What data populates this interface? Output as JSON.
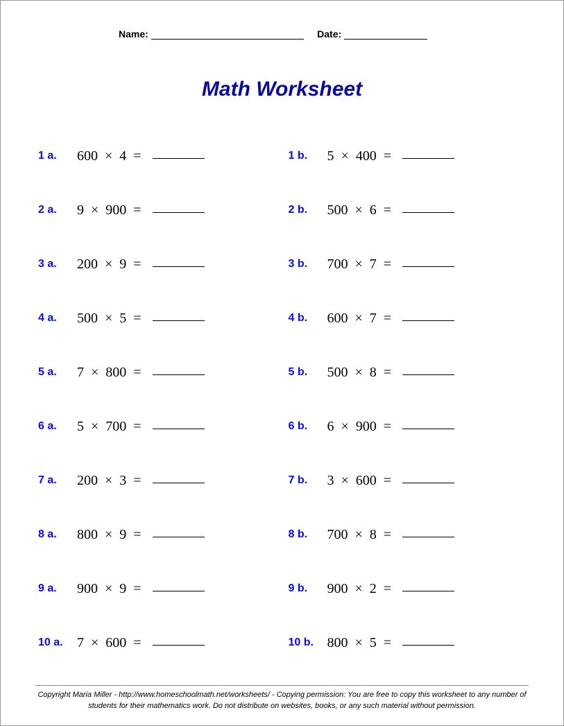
{
  "header": {
    "name_label": "Name:",
    "date_label": "Date:"
  },
  "title": "Math Worksheet",
  "style": {
    "title_color": "#0a0a9a",
    "label_color": "#0a0aee",
    "expr_color": "#000000",
    "page_bg": "#ffffff",
    "title_fontsize": 30,
    "label_fontsize": 16,
    "expr_fontsize": 20,
    "answer_blank_width": 75
  },
  "problems": [
    {
      "label": "1 a.",
      "a": "600",
      "b": "4"
    },
    {
      "label": "1 b.",
      "a": "5",
      "b": "400"
    },
    {
      "label": "2 a.",
      "a": "9",
      "b": "900"
    },
    {
      "label": "2 b.",
      "a": "500",
      "b": "6"
    },
    {
      "label": "3 a.",
      "a": "200",
      "b": "9"
    },
    {
      "label": "3 b.",
      "a": "700",
      "b": "7"
    },
    {
      "label": "4 a.",
      "a": "500",
      "b": "5"
    },
    {
      "label": "4 b.",
      "a": "600",
      "b": "7"
    },
    {
      "label": "5 a.",
      "a": "7",
      "b": "800"
    },
    {
      "label": "5 b.",
      "a": "500",
      "b": "8"
    },
    {
      "label": "6 a.",
      "a": "5",
      "b": "700"
    },
    {
      "label": "6 b.",
      "a": "6",
      "b": "900"
    },
    {
      "label": "7 a.",
      "a": "200",
      "b": "3"
    },
    {
      "label": "7 b.",
      "a": "3",
      "b": "600"
    },
    {
      "label": "8 a.",
      "a": "800",
      "b": "9"
    },
    {
      "label": "8 b.",
      "a": "700",
      "b": "8"
    },
    {
      "label": "9 a.",
      "a": "900",
      "b": "9"
    },
    {
      "label": "9 b.",
      "a": "900",
      "b": "2"
    },
    {
      "label": "10 a.",
      "a": "7",
      "b": "600"
    },
    {
      "label": "10 b.",
      "a": "800",
      "b": "5"
    }
  ],
  "operator": "×",
  "equals": "=",
  "footer": "Copyright Maria Miller - http://www.homeschoolmath.net/worksheets/ - Copying permission: You are free to copy this worksheet to any number of students for their mathematics work. Do not distribute on websites, books, or any such material without permission."
}
